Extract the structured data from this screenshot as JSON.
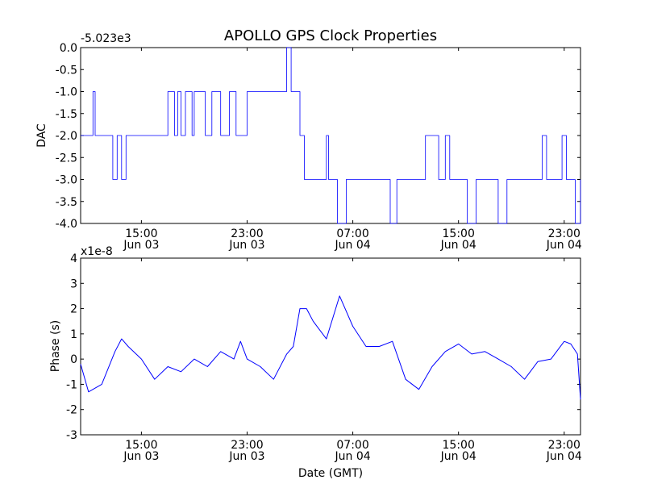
{
  "chart_data": [
    {
      "type": "line",
      "title": "APOLLO GPS Clock Properties",
      "ylabel": "DAC",
      "xlabel": "",
      "offset_text": "-5.023e3",
      "ylim": [
        -4.0,
        0.0
      ],
      "yticks": [
        "0.0",
        "-0.5",
        "-1.0",
        "-1.5",
        "-2.0",
        "-2.5",
        "-3.0",
        "-3.5",
        "-4.0"
      ],
      "xlim": [
        "Jun 03 10:24",
        "Jun 05 00:14"
      ],
      "xticks": [
        {
          "time": "15:00",
          "date": "Jun 03"
        },
        {
          "time": "23:00",
          "date": "Jun 03"
        },
        {
          "time": "07:00",
          "date": "Jun 04"
        },
        {
          "time": "15:00",
          "date": "Jun 04"
        },
        {
          "time": "23:00",
          "date": "Jun 04"
        }
      ],
      "color": "#0000ff",
      "series": [
        {
          "x": [
            "Jun 03 10:24",
            "Jun 03 11:20",
            "Jun 03 11:30",
            "Jun 03 11:50",
            "Jun 03 12:00",
            "Jun 03 12:50",
            "Jun 03 13:10",
            "Jun 03 13:30",
            "Jun 03 13:50",
            "Jun 03 14:00",
            "Jun 03 15:10",
            "Jun 03 16:10",
            "Jun 03 17:00",
            "Jun 03 17:30",
            "Jun 03 17:45",
            "Jun 03 18:00",
            "Jun 03 18:20",
            "Jun 03 18:30",
            "Jun 03 18:50",
            "Jun 03 19:00",
            "Jun 03 19:30",
            "Jun 03 19:50",
            "Jun 03 20:20",
            "Jun 03 21:00",
            "Jun 03 21:40",
            "Jun 03 22:10",
            "Jun 03 23:00",
            "Jun 03 23:20",
            "Jun 03 23:40",
            "Jun 04 00:00",
            "Jun 04 00:30",
            "Jun 04 01:00",
            "Jun 04 02:00",
            "Jun 04 02:20",
            "Jun 04 02:50",
            "Jun 04 03:00",
            "Jun 04 03:20",
            "Jun 04 03:40",
            "Jun 04 04:00",
            "Jun 04 05:00",
            "Jun 04 05:10",
            "Jun 04 05:30",
            "Jun 04 05:50",
            "Jun 04 06:30",
            "Jun 04 07:00",
            "Jun 04 07:20",
            "Jun 04 08:00",
            "Jun 04 09:00",
            "Jun 04 09:50",
            "Jun 04 10:20",
            "Jun 04 10:50",
            "Jun 04 11:30",
            "Jun 04 12:30",
            "Jun 04 13:10",
            "Jun 04 13:30",
            "Jun 04 14:00",
            "Jun 04 14:20",
            "Jun 04 14:40",
            "Jun 04 15:00",
            "Jun 04 15:40",
            "Jun 04 16:20",
            "Jun 04 17:00",
            "Jun 04 17:40",
            "Jun 04 18:00",
            "Jun 04 18:40",
            "Jun 04 19:30",
            "Jun 04 20:00",
            "Jun 04 20:50",
            "Jun 04 21:00",
            "Jun 04 21:20",
            "Jun 04 21:40",
            "Jun 04 22:00",
            "Jun 04 22:50",
            "Jun 04 23:10",
            "Jun 04 23:30",
            "Jun 04 23:50",
            "Jun 05 00:14"
          ],
          "y": [
            -2.0,
            -1.0,
            -2.0,
            -2.0,
            -2.0,
            -3.0,
            -2.0,
            -3.0,
            -2.0,
            -2.0,
            -2.0,
            -2.0,
            -1.0,
            -2.0,
            -1.0,
            -2.0,
            -1.0,
            -1.0,
            -2.0,
            -1.0,
            -1.0,
            -2.0,
            -1.0,
            -2.0,
            -1.0,
            -2.0,
            -1.0,
            -1.0,
            -1.0,
            -1.0,
            -1.0,
            -1.0,
            0.0,
            -1.0,
            -1.0,
            -2.0,
            -3.0,
            -3.0,
            -3.0,
            -2.0,
            -3.0,
            -3.0,
            -4.0,
            -3.0,
            -3.0,
            -3.0,
            -3.0,
            -3.0,
            -4.0,
            -3.0,
            -3.0,
            -3.0,
            -2.0,
            -2.0,
            -3.0,
            -2.0,
            -3.0,
            -3.0,
            -3.0,
            -4.0,
            -3.0,
            -3.0,
            -3.0,
            -4.0,
            -3.0,
            -3.0,
            -3.0,
            -3.0,
            -3.0,
            -2.0,
            -3.0,
            -3.0,
            -2.0,
            -3.0,
            -3.0,
            -4.0,
            -3.0
          ]
        }
      ]
    },
    {
      "type": "line",
      "title": "",
      "ylabel": "Phase (s)",
      "xlabel": "Date (GMT)",
      "offset_text": "x1e-8",
      "ylim": [
        -3,
        4
      ],
      "yticks": [
        "4",
        "3",
        "2",
        "1",
        "0",
        "-1",
        "-2",
        "-3"
      ],
      "xlim": [
        "Jun 03 10:24",
        "Jun 05 00:14"
      ],
      "xticks": [
        {
          "time": "15:00",
          "date": "Jun 03"
        },
        {
          "time": "23:00",
          "date": "Jun 03"
        },
        {
          "time": "07:00",
          "date": "Jun 04"
        },
        {
          "time": "15:00",
          "date": "Jun 04"
        },
        {
          "time": "23:00",
          "date": "Jun 04"
        }
      ],
      "color": "#0000ff",
      "series": [
        {
          "x": [
            "Jun 03 10:24",
            "Jun 03 11:00",
            "Jun 03 12:00",
            "Jun 03 13:00",
            "Jun 03 13:30",
            "Jun 03 14:00",
            "Jun 03 15:00",
            "Jun 03 16:00",
            "Jun 03 17:00",
            "Jun 03 18:00",
            "Jun 03 19:00",
            "Jun 03 20:00",
            "Jun 03 21:00",
            "Jun 03 22:00",
            "Jun 03 22:30",
            "Jun 03 23:00",
            "Jun 04 00:00",
            "Jun 04 01:00",
            "Jun 04 02:00",
            "Jun 04 02:30",
            "Jun 04 03:00",
            "Jun 04 03:30",
            "Jun 04 04:00",
            "Jun 04 05:00",
            "Jun 04 06:00",
            "Jun 04 07:00",
            "Jun 04 08:00",
            "Jun 04 09:00",
            "Jun 04 10:00",
            "Jun 04 11:00",
            "Jun 04 12:00",
            "Jun 04 13:00",
            "Jun 04 14:00",
            "Jun 04 15:00",
            "Jun 04 16:00",
            "Jun 04 17:00",
            "Jun 04 18:00",
            "Jun 04 19:00",
            "Jun 04 20:00",
            "Jun 04 21:00",
            "Jun 04 22:00",
            "Jun 04 23:00",
            "Jun 04 23:30",
            "Jun 05 00:00",
            "Jun 05 00:14"
          ],
          "y": [
            -0.2,
            -1.3,
            -1.0,
            0.3,
            0.8,
            0.5,
            0.0,
            -0.8,
            -0.3,
            -0.5,
            0.0,
            -0.3,
            0.3,
            0.0,
            0.7,
            0.0,
            -0.3,
            -0.8,
            0.2,
            0.5,
            2.0,
            2.0,
            1.5,
            0.8,
            2.5,
            1.3,
            0.5,
            0.5,
            0.7,
            -0.8,
            -1.2,
            -0.3,
            0.3,
            0.6,
            0.2,
            0.3,
            0.0,
            -0.3,
            -0.8,
            -0.1,
            0.0,
            0.7,
            0.6,
            0.2,
            -1.6
          ]
        }
      ]
    }
  ]
}
